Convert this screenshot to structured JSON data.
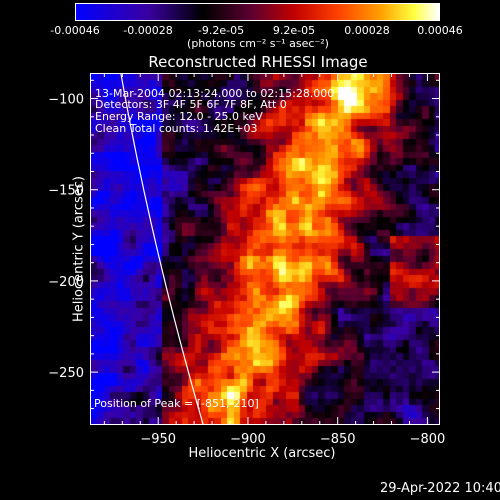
{
  "colorbar": {
    "ticks": [
      "-0.00046",
      "-0.00028",
      "-9.2e-05",
      "9.2e-05",
      "0.00028",
      "0.00046"
    ],
    "units": "(photons cm⁻² s⁻¹ asec⁻²)"
  },
  "title": "Reconstructed RHESSI Image",
  "info_lines": [
    "13-Mar-2004 02:13:24.000 to 02:15:28.000",
    "Detectors: 3F 4F 5F 6F 7F 8F, Att 0",
    "Energy Range: 12.0 - 25.0 keV",
    "Clean      Total counts: 1.42E+03"
  ],
  "peak_label": "Position of Peak = [-851,-210]",
  "footer_time": "29-Apr-2022 10:40",
  "chart_data": {
    "type": "heatmap",
    "title": "Reconstructed RHESSI Image",
    "xlabel": "Heliocentric X (arcsec)",
    "ylabel": "Heliocentric Y (arcsec)",
    "xlim": [
      -988,
      -793
    ],
    "ylim": [
      -279,
      -86
    ],
    "xticks": [
      -950,
      -900,
      -850,
      -800
    ],
    "yticks": [
      -100,
      -150,
      -200,
      -250
    ],
    "colorbar_range": [
      -0.00046,
      0.00046
    ],
    "peak_position": [
      -851,
      -210
    ],
    "colors": {
      "low": "#0000ff",
      "mid": "#ff0000",
      "high": "#ffffff"
    }
  }
}
